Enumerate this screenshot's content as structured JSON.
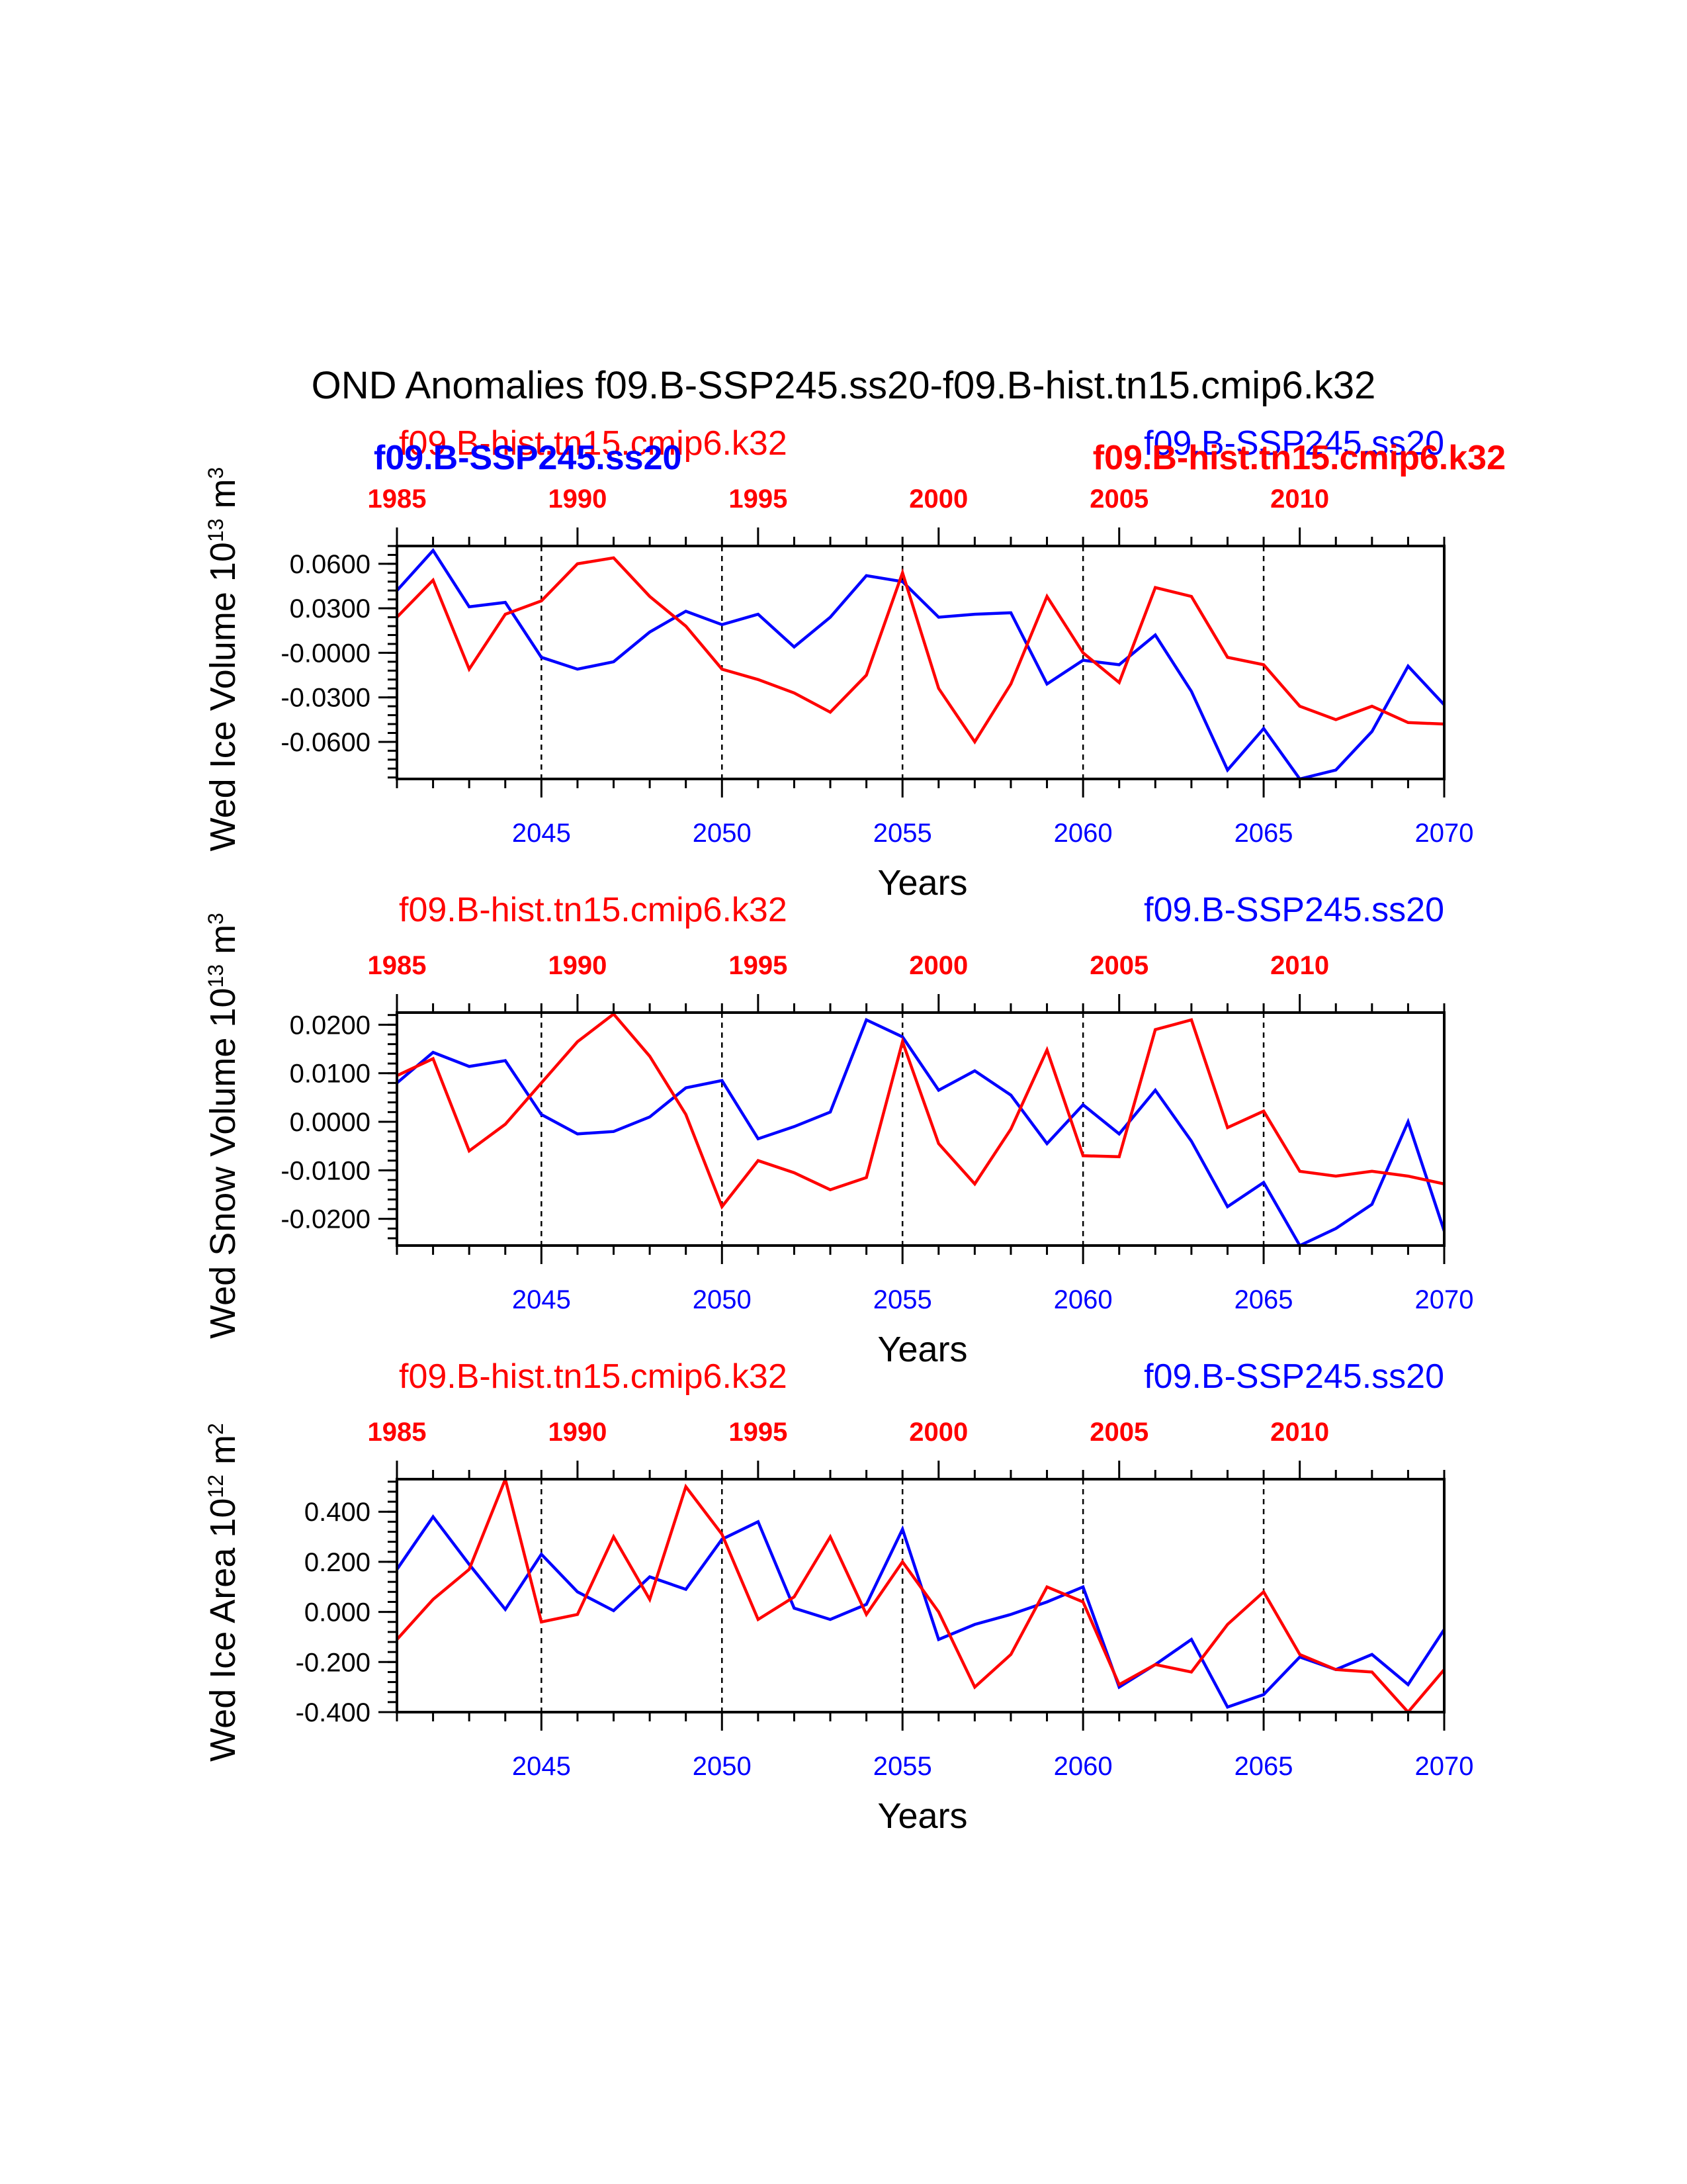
{
  "figure_title": "OND Anomalies f09.B-SSP245.ss20-f09.B-hist.tn15.cmip6.k32",
  "colors": {
    "ssp": "#0000ff",
    "hist": "#ff0000"
  },
  "bottom_axis_ticks": [
    "2045",
    "2050",
    "2055",
    "2060",
    "2065",
    "2070"
  ],
  "top_axis_ticks": [
    "1985",
    "1990",
    "1995",
    "2000",
    "2005",
    "2010"
  ],
  "chart_data": [
    {
      "type": "line",
      "ylabel": "Wed Ice Volume 10",
      "ylabel_exponent": "13",
      "ylabel_unit": "m",
      "ylabel_unit_exponent": "3",
      "xlabel": "Years",
      "xlim": [
        2041,
        2070
      ],
      "top_xlim": [
        1985,
        2014
      ],
      "ylim": [
        -0.085,
        0.072
      ],
      "yticks": [
        0.06,
        0.03,
        0.0,
        -0.03,
        -0.06
      ],
      "ytick_labels": [
        "0.0600",
        "0.0300",
        "-0.0000",
        "-0.0300",
        "-0.0600"
      ],
      "minor_ytick_step": 0.006,
      "grid_x": [
        2045,
        2050,
        2055,
        2060,
        2065
      ],
      "panel_titles": [
        {
          "text": "f09.B-hist.tn15.cmip6.k32",
          "color": "hist",
          "side": "left",
          "weight": "normal"
        },
        {
          "text": "f09.B-SSP245.ss20",
          "color": "ssp",
          "side": "left",
          "weight": "bold"
        },
        {
          "text": "f09.B-SSP245.ss20",
          "color": "ssp",
          "side": "right",
          "weight": "normal"
        },
        {
          "text": "f09.B-hist.tn15.cmip6.k32",
          "color": "hist",
          "side": "right",
          "weight": "bold"
        }
      ],
      "series": [
        {
          "color": "ssp",
          "x": [
            2041,
            2042,
            2043,
            2044,
            2045,
            2046,
            2047,
            2048,
            2049,
            2050,
            2051,
            2052,
            2053,
            2054,
            2055,
            2056,
            2057,
            2058,
            2059,
            2060,
            2061,
            2062,
            2063,
            2064,
            2065,
            2066,
            2067,
            2068,
            2069,
            2070
          ],
          "values": [
            0.042,
            0.069,
            0.031,
            0.034,
            -0.003,
            -0.011,
            -0.006,
            0.014,
            0.028,
            0.019,
            0.026,
            0.004,
            0.024,
            0.052,
            0.048,
            0.024,
            0.026,
            0.027,
            -0.021,
            -0.005,
            -0.008,
            0.012,
            -0.026,
            -0.079,
            -0.051,
            -0.085,
            -0.079,
            -0.053,
            -0.009,
            -0.035
          ]
        },
        {
          "color": "hist",
          "x": [
            1985,
            1986,
            1987,
            1988,
            1989,
            1990,
            1991,
            1992,
            1993,
            1994,
            1995,
            1996,
            1997,
            1998,
            1999,
            2000,
            2001,
            2002,
            2003,
            2004,
            2005,
            2006,
            2007,
            2008,
            2009,
            2010,
            2011,
            2012,
            2013,
            2014
          ],
          "values": [
            0.024,
            0.049,
            -0.011,
            0.026,
            0.035,
            0.06,
            0.064,
            0.038,
            0.018,
            -0.011,
            -0.018,
            -0.027,
            -0.04,
            -0.015,
            0.054,
            -0.024,
            -0.06,
            -0.021,
            0.038,
            0.0,
            -0.02,
            0.044,
            0.038,
            -0.003,
            -0.008,
            -0.036,
            -0.045,
            -0.036,
            -0.047,
            -0.048
          ]
        }
      ]
    },
    {
      "type": "line",
      "ylabel": "Wed Snow Volume 10",
      "ylabel_exponent": "13",
      "ylabel_unit": "m",
      "ylabel_unit_exponent": "3",
      "xlabel": "Years",
      "xlim": [
        2041,
        2070
      ],
      "top_xlim": [
        1985,
        2014
      ],
      "ylim": [
        -0.0255,
        0.0225
      ],
      "yticks": [
        0.02,
        0.01,
        0.0,
        -0.01,
        -0.02
      ],
      "ytick_labels": [
        "0.0200",
        "0.0100",
        "0.0000",
        "-0.0100",
        "-0.0200"
      ],
      "minor_ytick_step": 0.002,
      "grid_x": [
        2045,
        2050,
        2055,
        2060,
        2065
      ],
      "panel_titles": [
        {
          "text": "f09.B-hist.tn15.cmip6.k32",
          "color": "hist",
          "side": "left",
          "weight": "normal"
        },
        {
          "text": "f09.B-SSP245.ss20",
          "color": "ssp",
          "side": "right",
          "weight": "normal"
        }
      ],
      "series": [
        {
          "color": "ssp",
          "x": [
            2041,
            2042,
            2043,
            2044,
            2045,
            2046,
            2047,
            2048,
            2049,
            2050,
            2051,
            2052,
            2053,
            2054,
            2055,
            2056,
            2057,
            2058,
            2059,
            2060,
            2061,
            2062,
            2063,
            2064,
            2065,
            2066,
            2067,
            2068,
            2069,
            2070
          ],
          "values": [
            0.008,
            0.0143,
            0.0114,
            0.0126,
            0.0015,
            -0.0025,
            -0.002,
            0.001,
            0.007,
            0.0085,
            -0.0035,
            -0.001,
            0.002,
            0.021,
            0.0175,
            0.0065,
            0.0105,
            0.0055,
            -0.0045,
            0.0035,
            -0.0025,
            0.0065,
            -0.004,
            -0.0175,
            -0.0125,
            -0.0255,
            -0.022,
            -0.017,
            0.0,
            -0.0225
          ]
        },
        {
          "color": "hist",
          "x": [
            1985,
            1986,
            1987,
            1988,
            1989,
            1990,
            1991,
            1992,
            1993,
            1994,
            1995,
            1996,
            1997,
            1998,
            1999,
            2000,
            2001,
            2002,
            2003,
            2004,
            2005,
            2006,
            2007,
            2008,
            2009,
            2010,
            2011,
            2012,
            2013,
            2014
          ],
          "values": [
            0.0095,
            0.013,
            -0.006,
            -0.0005,
            0.008,
            0.0165,
            0.0222,
            0.0135,
            0.0015,
            -0.0175,
            -0.008,
            -0.0105,
            -0.014,
            -0.0115,
            0.0165,
            -0.0045,
            -0.0128,
            -0.0015,
            0.0148,
            -0.007,
            -0.0072,
            0.019,
            0.021,
            -0.0012,
            0.0022,
            -0.0102,
            -0.0112,
            -0.0102,
            -0.0112,
            -0.0128
          ]
        }
      ]
    },
    {
      "type": "line",
      "ylabel": "Wed Ice Area 10",
      "ylabel_exponent": "12",
      "ylabel_unit": "m",
      "ylabel_unit_exponent": "2",
      "xlabel": "Years",
      "xlim": [
        2041,
        2070
      ],
      "top_xlim": [
        1985,
        2014
      ],
      "ylim": [
        -0.4,
        0.53
      ],
      "yticks": [
        0.4,
        0.2,
        0.0,
        -0.2,
        -0.4
      ],
      "ytick_labels": [
        "0.400",
        "0.200",
        "0.000",
        "-0.200",
        "-0.400"
      ],
      "minor_ytick_step": 0.04,
      "grid_x": [
        2045,
        2050,
        2055,
        2060,
        2065
      ],
      "panel_titles": [
        {
          "text": "f09.B-hist.tn15.cmip6.k32",
          "color": "hist",
          "side": "left",
          "weight": "normal"
        },
        {
          "text": "f09.B-SSP245.ss20",
          "color": "ssp",
          "side": "right",
          "weight": "normal"
        }
      ],
      "series": [
        {
          "color": "ssp",
          "x": [
            2041,
            2042,
            2043,
            2044,
            2045,
            2046,
            2047,
            2048,
            2049,
            2050,
            2051,
            2052,
            2053,
            2054,
            2055,
            2056,
            2057,
            2058,
            2059,
            2060,
            2061,
            2062,
            2063,
            2064,
            2065,
            2066,
            2067,
            2068,
            2069,
            2070
          ],
          "values": [
            0.17,
            0.38,
            0.19,
            0.01,
            0.23,
            0.08,
            0.005,
            0.14,
            0.09,
            0.29,
            0.36,
            0.015,
            -0.03,
            0.03,
            0.33,
            -0.11,
            -0.05,
            -0.01,
            0.04,
            0.1,
            -0.3,
            -0.21,
            -0.11,
            -0.38,
            -0.33,
            -0.18,
            -0.23,
            -0.17,
            -0.29,
            -0.07
          ]
        },
        {
          "color": "hist",
          "x": [
            1985,
            1986,
            1987,
            1988,
            1989,
            1990,
            1991,
            1992,
            1993,
            1994,
            1995,
            1996,
            1997,
            1998,
            1999,
            2000,
            2001,
            2002,
            2003,
            2004,
            2005,
            2006,
            2007,
            2008,
            2009,
            2010,
            2011,
            2012,
            2013,
            2014
          ],
          "values": [
            -0.11,
            0.05,
            0.17,
            0.53,
            -0.04,
            -0.01,
            0.3,
            0.05,
            0.5,
            0.31,
            -0.03,
            0.06,
            0.3,
            -0.01,
            0.2,
            0.0,
            -0.3,
            -0.17,
            0.1,
            0.04,
            -0.29,
            -0.21,
            -0.24,
            -0.05,
            0.08,
            -0.17,
            -0.23,
            -0.24,
            -0.41,
            -0.23
          ]
        }
      ]
    }
  ]
}
